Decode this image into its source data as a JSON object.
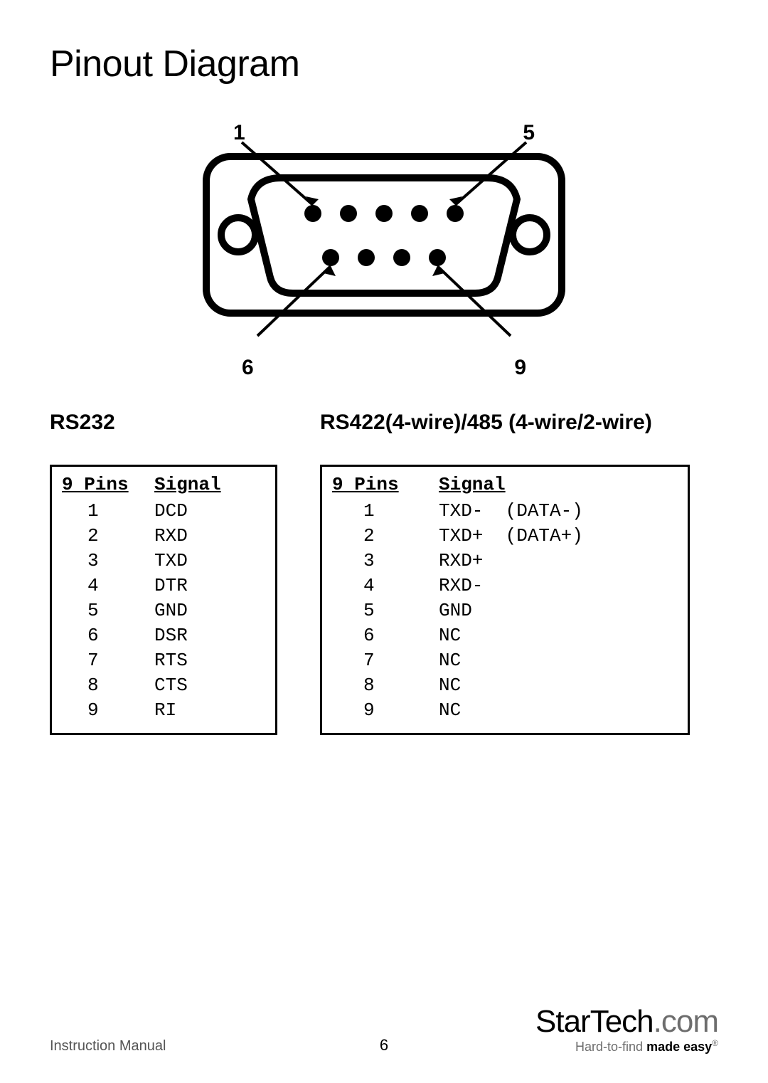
{
  "title": "Pinout Diagram",
  "connector": {
    "labels": {
      "topLeft": "1",
      "topRight": "5",
      "bottomLeft": "6",
      "bottomRight": "9"
    },
    "stroke": "#000000",
    "strokeWidth": 10,
    "pinRadius": 12,
    "topPins": 5,
    "bottomPins": 4
  },
  "tables": {
    "left": {
      "heading": "RS232",
      "header": {
        "pins": "9 Pins",
        "signal": "Signal"
      },
      "rows": [
        {
          "pin": "1",
          "signal": "DCD"
        },
        {
          "pin": "2",
          "signal": "RXD"
        },
        {
          "pin": "3",
          "signal": "TXD"
        },
        {
          "pin": "4",
          "signal": "DTR"
        },
        {
          "pin": "5",
          "signal": "GND"
        },
        {
          "pin": "6",
          "signal": "DSR"
        },
        {
          "pin": "7",
          "signal": "RTS"
        },
        {
          "pin": "8",
          "signal": "CTS"
        },
        {
          "pin": "9",
          "signal": "RI"
        }
      ]
    },
    "right": {
      "heading": "RS422(4-wire)/485 (4-wire/2-wire)",
      "header": {
        "pins": "9 Pins",
        "signal": "Signal"
      },
      "rows": [
        {
          "pin": "1",
          "signal": "TXD-  (DATA-)"
        },
        {
          "pin": "2",
          "signal": "TXD+  (DATA+)"
        },
        {
          "pin": "3",
          "signal": "RXD+"
        },
        {
          "pin": "4",
          "signal": "RXD-"
        },
        {
          "pin": "5",
          "signal": "GND"
        },
        {
          "pin": "6",
          "signal": "NC"
        },
        {
          "pin": "7",
          "signal": "NC"
        },
        {
          "pin": "8",
          "signal": "NC"
        },
        {
          "pin": "9",
          "signal": "NC"
        }
      ]
    }
  },
  "footer": {
    "left": "Instruction Manual",
    "page": "6",
    "brand": {
      "name1": "StarTech",
      "name2": ".com",
      "tagline_pre": "Hard-to-find ",
      "tagline_bold": "made easy"
    }
  },
  "colors": {
    "text": "#000000",
    "muted": "#6d6d6d",
    "bg": "#ffffff"
  }
}
